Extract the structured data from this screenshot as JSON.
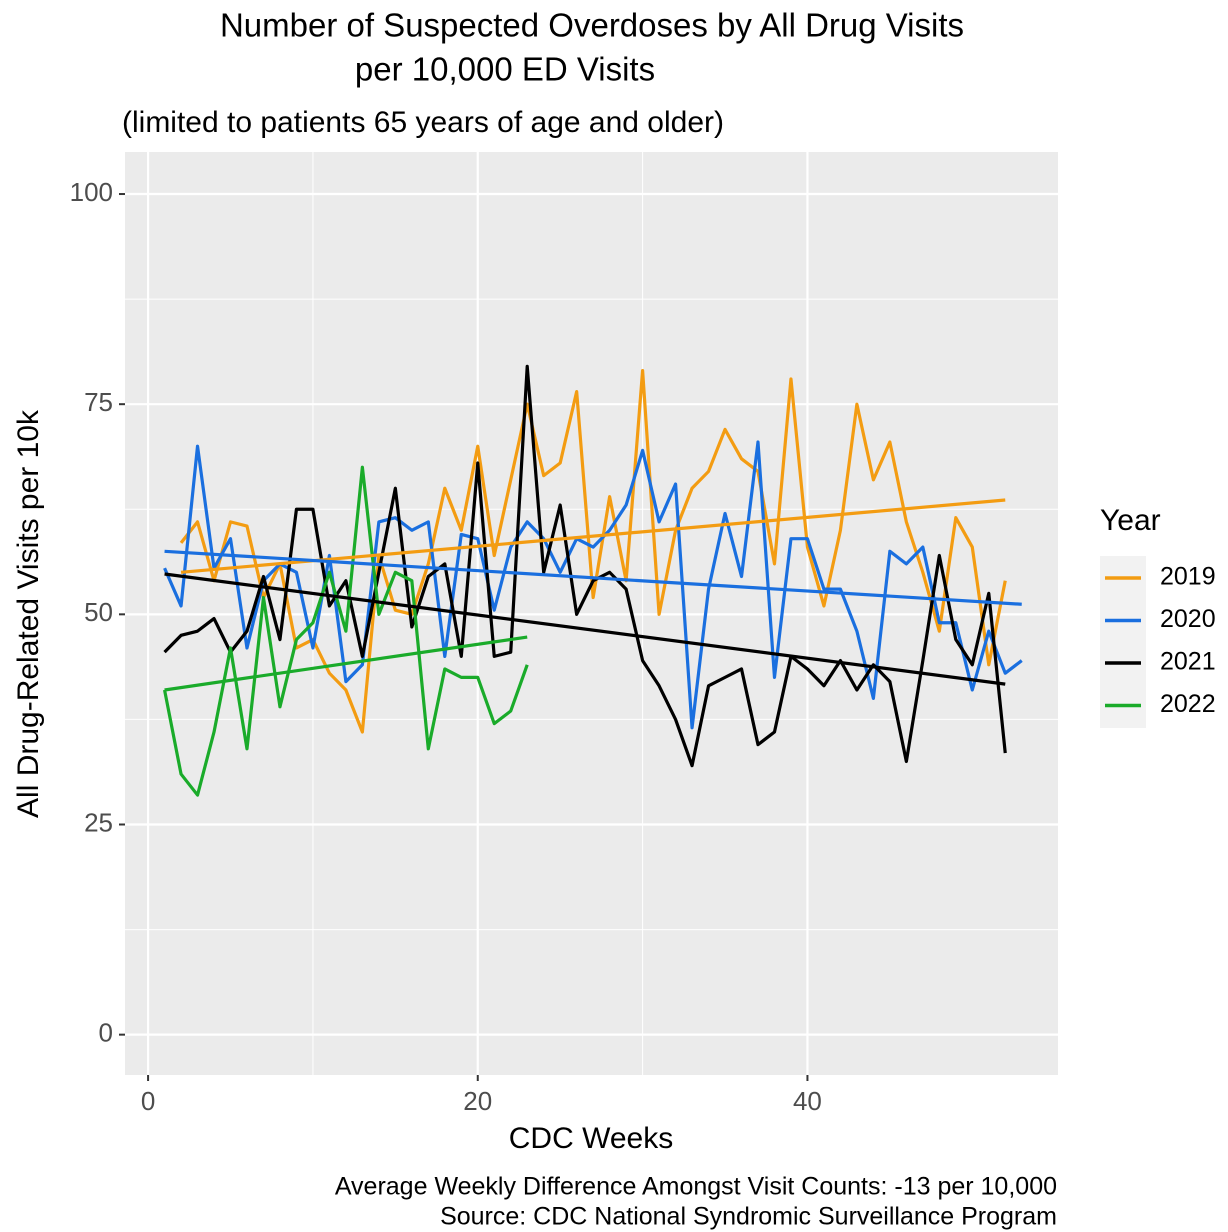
{
  "chart_data": {
    "type": "line",
    "title": [
      "Number of Suspected Overdoses by All Drug Visits",
      "per 10,000 ED Visits"
    ],
    "subtitle": "(limited to patients 65 years of age and older)",
    "x_label": "CDC Weeks",
    "y_label": "All Drug-Related Visits per 10k",
    "caption": [
      "Average Weekly Difference Amongst Visit Counts: -13 per 10,000",
      "Source: CDC National Syndromic Surveillance Program"
    ],
    "legend_title": "Year",
    "legend_position": "right",
    "grid": true,
    "xlim": [
      -1.4,
      55.2
    ],
    "ylim": [
      -4.8,
      105
    ],
    "xticks": [
      0,
      20,
      40
    ],
    "yticks": [
      0,
      25,
      50,
      75,
      100
    ],
    "series": [
      {
        "name": "2019",
        "color": "#f39c12",
        "x": [
          2,
          3,
          4,
          5,
          6,
          7,
          8,
          9,
          10,
          11,
          12,
          13,
          14,
          15,
          16,
          17,
          18,
          19,
          20,
          21,
          22,
          23,
          24,
          25,
          26,
          27,
          28,
          29,
          30,
          31,
          32,
          33,
          34,
          35,
          36,
          37,
          38,
          39,
          40,
          41,
          42,
          43,
          44,
          45,
          46,
          47,
          48,
          49,
          50,
          51,
          52
        ],
        "values": [
          58.5,
          61,
          54,
          61,
          60.5,
          52,
          56,
          46,
          47,
          43,
          41,
          36,
          57,
          50.5,
          50,
          56,
          65,
          60,
          70,
          57,
          66,
          75,
          66.5,
          68,
          76.5,
          52,
          64,
          54,
          79,
          50,
          60,
          65,
          67,
          72,
          68.5,
          67,
          56,
          78,
          58,
          51,
          60,
          75,
          66,
          70.5,
          61,
          55,
          48,
          61.5,
          58,
          44,
          54
        ],
        "trend": {
          "x": [
            2,
            52
          ],
          "values": [
            55,
            63.6
          ]
        }
      },
      {
        "name": "2020",
        "color": "#1a6fdf",
        "x": [
          1,
          2,
          3,
          4,
          5,
          6,
          7,
          8,
          9,
          10,
          11,
          12,
          13,
          14,
          15,
          16,
          17,
          18,
          19,
          20,
          21,
          22,
          23,
          24,
          25,
          26,
          27,
          28,
          29,
          30,
          31,
          32,
          33,
          34,
          35,
          36,
          37,
          38,
          39,
          40,
          41,
          42,
          43,
          44,
          45,
          46,
          47,
          48,
          49,
          50,
          51,
          52,
          53
        ],
        "values": [
          55.5,
          51,
          70,
          55.5,
          59,
          46,
          54,
          56,
          55,
          46,
          57,
          42,
          44,
          61,
          61.5,
          60,
          61,
          45,
          59.5,
          59,
          50.5,
          58,
          61,
          59,
          55,
          59,
          58,
          60,
          63,
          69.5,
          61,
          65.5,
          36.5,
          53,
          62,
          54.5,
          70.5,
          42.5,
          59,
          59,
          53,
          53,
          48,
          40,
          57.5,
          56,
          58,
          49,
          49,
          41,
          48,
          43,
          44.5
        ],
        "trend": {
          "x": [
            1,
            53
          ],
          "values": [
            57.5,
            51.2
          ]
        }
      },
      {
        "name": "2021",
        "color": "#000000",
        "x": [
          1,
          2,
          3,
          4,
          5,
          6,
          7,
          8,
          9,
          10,
          11,
          12,
          13,
          14,
          15,
          16,
          17,
          18,
          19,
          20,
          21,
          22,
          23,
          24,
          25,
          26,
          27,
          28,
          29,
          30,
          31,
          32,
          33,
          34,
          35,
          36,
          37,
          38,
          39,
          40,
          41,
          42,
          43,
          44,
          45,
          46,
          47,
          48,
          49,
          50,
          51,
          52
        ],
        "values": [
          45.5,
          47.5,
          48,
          49.5,
          45.5,
          48,
          54.5,
          47,
          62.5,
          62.5,
          51,
          54,
          45,
          55,
          65,
          48.5,
          54.5,
          56,
          45,
          68,
          45,
          45.5,
          79.5,
          55,
          63,
          50,
          54,
          55,
          53,
          44.5,
          41.5,
          37.5,
          32,
          41.5,
          42.5,
          43.5,
          34.5,
          36,
          45,
          43.5,
          41.5,
          44.5,
          41,
          44,
          42,
          32.5,
          44.5,
          57,
          47,
          44,
          52.5,
          33.5
        ],
        "trend": {
          "x": [
            1,
            52
          ],
          "values": [
            54.8,
            41.7
          ]
        }
      },
      {
        "name": "2022",
        "color": "#1aab2a",
        "x": [
          1,
          2,
          3,
          4,
          5,
          6,
          7,
          8,
          9,
          10,
          11,
          12,
          13,
          14,
          15,
          16,
          17,
          18,
          19,
          20,
          21,
          22,
          23
        ],
        "values": [
          41,
          31,
          28.5,
          36,
          46,
          34,
          52,
          39,
          47,
          49,
          55,
          48,
          67.5,
          50,
          55,
          54,
          34,
          43.5,
          42.5,
          42.5,
          37,
          38.5,
          44
        ],
        "trend": {
          "x": [
            1,
            23
          ],
          "values": [
            41,
            47.3
          ]
        }
      }
    ]
  }
}
